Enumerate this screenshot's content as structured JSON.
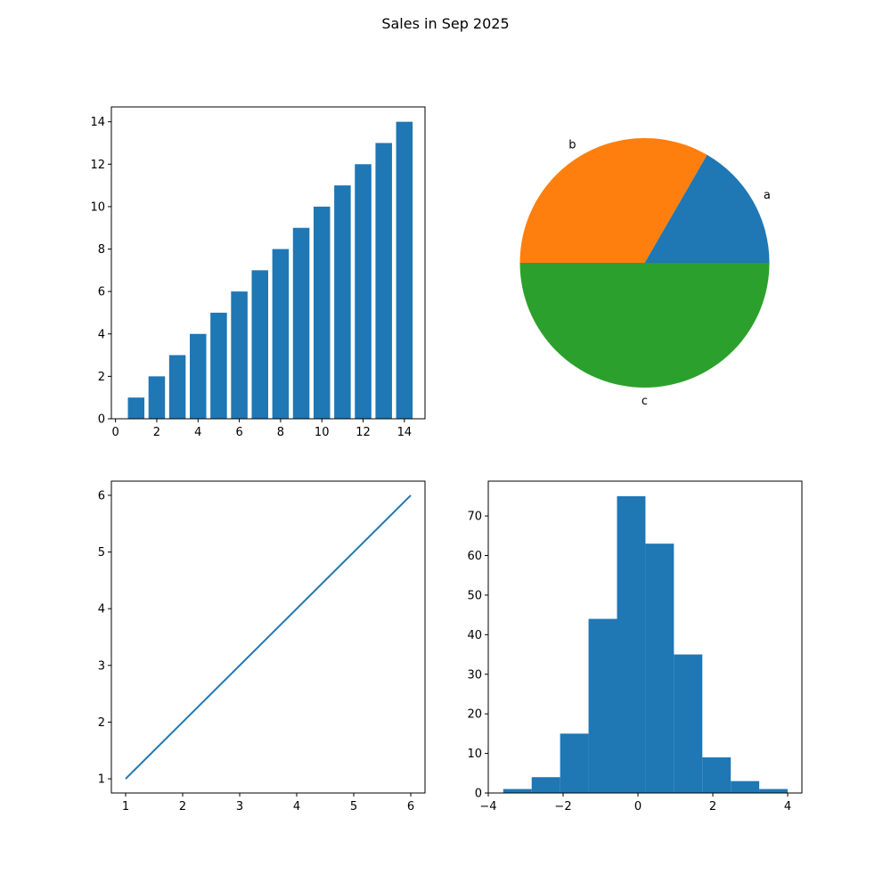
{
  "figure_title": "Sales in Sep 2025",
  "colors": {
    "blue": "#1f77b4",
    "orange": "#ff7f0e",
    "green": "#2ca02c"
  },
  "chart_data": [
    {
      "type": "bar",
      "panel": "top-left",
      "categories": [
        1,
        2,
        3,
        4,
        5,
        6,
        7,
        8,
        9,
        10,
        11,
        12,
        13,
        14
      ],
      "values": [
        1,
        2,
        3,
        4,
        5,
        6,
        7,
        8,
        9,
        10,
        11,
        12,
        13,
        14
      ],
      "xlim": [
        -0.2,
        15
      ],
      "ylim": [
        0,
        14.7
      ],
      "xticks": [
        0,
        2,
        4,
        6,
        8,
        10,
        12,
        14
      ],
      "yticks": [
        0,
        2,
        4,
        6,
        8,
        10,
        12,
        14
      ],
      "color": "#1f77b4"
    },
    {
      "type": "pie",
      "panel": "top-right",
      "labels": [
        "a",
        "b",
        "c"
      ],
      "values": [
        1,
        2,
        3
      ],
      "colors": [
        "#1f77b4",
        "#ff7f0e",
        "#2ca02c"
      ]
    },
    {
      "type": "line",
      "panel": "bottom-left",
      "x": [
        1,
        2,
        3,
        4,
        5,
        6
      ],
      "y": [
        1,
        2,
        3,
        4,
        5,
        6
      ],
      "xlim": [
        0.75,
        6.25
      ],
      "ylim": [
        0.75,
        6.25
      ],
      "xticks": [
        1,
        2,
        3,
        4,
        5,
        6
      ],
      "yticks": [
        1,
        2,
        3,
        4,
        5,
        6
      ],
      "color": "#1f77b4"
    },
    {
      "type": "bar",
      "subtype": "histogram",
      "panel": "bottom-right",
      "bin_edges": [
        -3.6,
        -2.84,
        -2.08,
        -1.32,
        -0.56,
        0.2,
        0.96,
        1.72,
        2.48,
        3.24,
        4.0
      ],
      "counts": [
        1,
        4,
        15,
        44,
        75,
        63,
        35,
        9,
        3,
        1
      ],
      "xlim": [
        -4,
        4.38
      ],
      "ylim": [
        0,
        78.8
      ],
      "xticks": [
        -4,
        -2,
        0,
        2,
        4
      ],
      "xtick_labels": [
        "−4",
        "−2",
        "0",
        "2",
        "4"
      ],
      "yticks": [
        0,
        10,
        20,
        30,
        40,
        50,
        60,
        70
      ],
      "color": "#1f77b4"
    }
  ]
}
